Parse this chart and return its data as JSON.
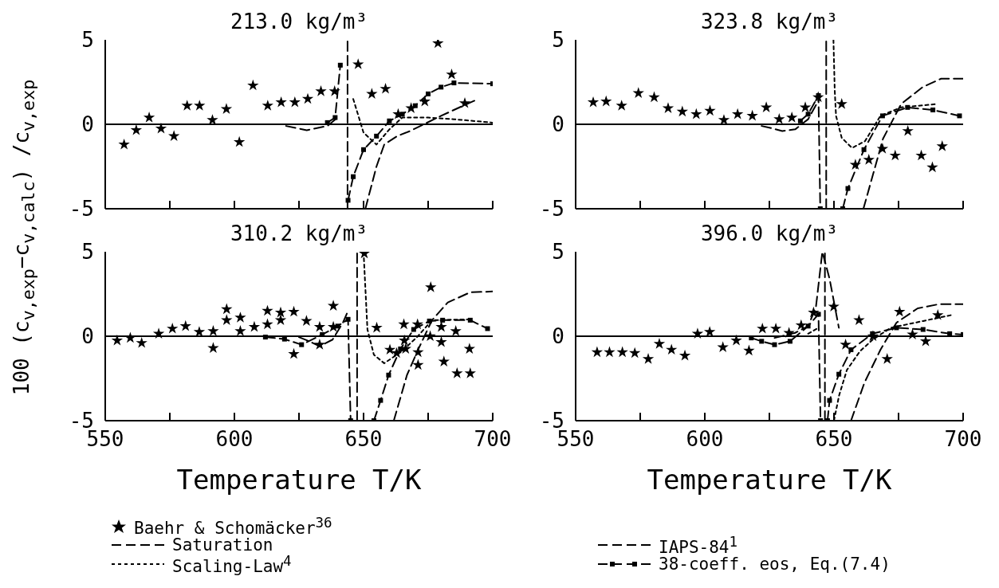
{
  "chart_data": [
    {
      "type": "line",
      "title": "213.0 kg/m³",
      "ylabel": "100 (c$_{v,exp}$−c$_{v,calc}$) /c$_{v,exp}$",
      "legend": "bottom",
      "tick_labels": "y",
      "xlim": [
        550,
        700
      ],
      "xticks": [
        550,
        {
          "value": 575,
          "label": null
        },
        600,
        {
          "value": 625,
          "label": null
        },
        650,
        {
          "value": 675,
          "label": null
        },
        700
      ],
      "ylim": [
        -5,
        5
      ],
      "yticks": [
        -5,
        0,
        5
      ],
      "ref_lines": [
        {
          "axis": "y",
          "value": 0,
          "label": null
        }
      ],
      "series": [
        {
          "name": "Baehr & Schomäcker$^{36}$",
          "type": "scatter",
          "marker": "star",
          "color": "#000000",
          "x": [
            557.3,
            562,
            567,
            571.6,
            576.6,
            581.7,
            586.5,
            591.5,
            596.9,
            601.9,
            607.2,
            612.9,
            618.1,
            623.4,
            628.4,
            633.5,
            638.8,
            647.9,
            653.2,
            658.5,
            663.4,
            668.4,
            673.7,
            678.8,
            684.1,
            689.2
          ],
          "values": [
            -1.2,
            -0.35,
            0.4,
            -0.25,
            -0.7,
            1.1,
            1.1,
            0.25,
            0.9,
            -1.05,
            2.3,
            1.1,
            1.3,
            1.3,
            1.5,
            1.95,
            1.95,
            3.55,
            1.8,
            2.1,
            0.6,
            0.95,
            1.35,
            4.8,
            2.95,
            1.25
          ]
        },
        {
          "name": "Saturation",
          "line_style": "dashed",
          "color": "#000000",
          "x": [
            643.8,
            643.8
          ],
          "values": [
            -5,
            5
          ]
        },
        {
          "name": "Scaling-Law$^{4}$",
          "line_style": "dotted",
          "color": "#000000",
          "x": [
            646,
            650,
            655,
            660,
            665,
            675,
            685,
            700
          ],
          "values": [
            1.5,
            -0.5,
            -1.2,
            -0.3,
            0.4,
            0.4,
            0.3,
            0.1
          ]
        },
        {
          "name": "IAPS-84$^{1}$",
          "line_style": "dashed",
          "color": "#000000",
          "x": [
            620,
            628,
            636,
            640,
            646,
            650.7,
            655,
            658,
            663,
            668,
            672,
            680,
            690,
            693
          ],
          "values": [
            -0.1,
            -0.35,
            -0.1,
            0.4,
            null,
            -5,
            -2.5,
            -1.2,
            -0.7,
            -0.4,
            -0.1,
            0.5,
            1.2,
            1.4
          ]
        },
        {
          "name": "38-coeff. eos, Eq.(7.4)",
          "line_style": "dashed",
          "marker": "square",
          "color": "#000000",
          "x": [
            636,
            639,
            641,
            642,
            644,
            646,
            650,
            655,
            660,
            665,
            670,
            675,
            680,
            685,
            700
          ],
          "values": [
            0.1,
            0.4,
            3.5,
            null,
            -4.5,
            -3.1,
            -1.5,
            -0.7,
            0.2,
            0.6,
            1.1,
            1.8,
            2.2,
            2.45,
            2.4
          ]
        }
      ]
    },
    {
      "type": "line",
      "title": "323.8 kg/m³",
      "tick_labels": "y",
      "xlim": [
        550,
        700
      ],
      "xticks": [
        550,
        {
          "value": 575,
          "label": null
        },
        600,
        {
          "value": 625,
          "label": null
        },
        650,
        {
          "value": 675,
          "label": null
        },
        700
      ],
      "ylim": [
        -5,
        5
      ],
      "yticks": [
        -5,
        0,
        5
      ],
      "ref_lines": [
        {
          "axis": "y",
          "value": 0,
          "label": null
        }
      ],
      "series": [
        {
          "type": "scatter",
          "marker": "star",
          "color": "#000000",
          "x": [
            556.8,
            561.8,
            567.8,
            574.3,
            580.4,
            585.8,
            591.3,
            596.7,
            602,
            607.4,
            612.7,
            618.4,
            623.8,
            628.8,
            633.7,
            638.9,
            643.9,
            653,
            658.3,
            663.5,
            668.8,
            673.7,
            678.6,
            683.8,
            688.1,
            691.9
          ],
          "values": [
            1.3,
            1.35,
            1.1,
            1.85,
            1.6,
            0.95,
            0.75,
            0.6,
            0.8,
            0.25,
            0.6,
            0.5,
            1,
            0.3,
            0.4,
            1,
            1.6,
            1.2,
            -2.4,
            -2.1,
            -1.45,
            -1.85,
            -0.4,
            -1.85,
            -2.55,
            -1.3
          ]
        },
        {
          "line_style": "dashed",
          "color": "#000000",
          "x": [
            647,
            647
          ],
          "values": [
            -5,
            5
          ]
        },
        {
          "line_style": "dotted",
          "color": "#000000",
          "x": [
            649.8,
            650.3,
            650.8,
            653,
            657,
            662,
            668,
            676,
            690
          ],
          "values": [
            5,
            2,
            0.5,
            -0.8,
            -1.4,
            -1,
            0.5,
            1,
            1.2
          ]
        },
        {
          "line_style": "dashed",
          "color": "#000000",
          "x": [
            622,
            625,
            630,
            635,
            640,
            644,
            650,
            661.4,
            669,
            676,
            684.3,
            691.5,
            700
          ],
          "values": [
            -0.1,
            -0.2,
            -0.4,
            -0.3,
            0.3,
            1.4,
            null,
            -5,
            -0.85,
            1.2,
            2.2,
            2.7,
            2.7
          ]
        },
        {
          "line_style": "dashed",
          "marker": "square",
          "color": "#000000",
          "x": [
            637,
            640,
            644,
            644.7,
            650,
            653.4,
            655.4,
            661.6,
            668.8,
            678.5,
            688.3,
            698.6
          ],
          "values": [
            0.2,
            0.6,
            1.7,
            -5,
            null,
            -5,
            -3.8,
            -1.5,
            0.5,
            1,
            0.85,
            0.5
          ]
        }
      ]
    },
    {
      "type": "line",
      "title": "310.2 kg/m³",
      "xlabel": "Temperature T/K",
      "xlim": [
        550,
        700
      ],
      "xticks": [
        550,
        {
          "value": 575,
          "label": null
        },
        600,
        {
          "value": 625,
          "label": null
        },
        650,
        {
          "value": 675,
          "label": null
        },
        700
      ],
      "ylim": [
        -5,
        5
      ],
      "yticks": [
        -5,
        0,
        5
      ],
      "ref_lines": [
        {
          "axis": "y",
          "value": 0,
          "label": null
        }
      ],
      "series": [
        {
          "type": "scatter",
          "marker": "star",
          "color": "#000000",
          "x": [
            554.6,
            559.7,
            564.1,
            570.7,
            576,
            581.1,
            586.4,
            591.8,
            591.8,
            597,
            597,
            602.3,
            602.3,
            607.7,
            612.8,
            612.8,
            617.9,
            617.9,
            623,
            623,
            627.9,
            633,
            633,
            638.3,
            638.3,
            650.3,
            655.1,
            660.2,
            662.8,
            665.6,
            665.8,
            666.3,
            670.9,
            671.1,
            671.1,
            676,
            675.8,
            680.1,
            680.1,
            681.1,
            685.7,
            686.2,
            691,
            691.3
          ],
          "values": [
            -0.25,
            -0.1,
            -0.4,
            0.15,
            0.45,
            0.6,
            0.25,
            0.3,
            -0.7,
            1.6,
            0.95,
            1.1,
            0.3,
            0.55,
            1.5,
            0.7,
            1.4,
            0.95,
            1.45,
            -1.05,
            0.9,
            0.55,
            -0.5,
            1.8,
            0.55,
            4.9,
            0.5,
            -0.8,
            -1,
            0.7,
            -0.25,
            -0.75,
            0.7,
            -0.95,
            -1.7,
            2.9,
            0,
            0.55,
            -0.35,
            -1.5,
            0.3,
            -2.2,
            -0.75,
            -2.2
          ]
        },
        {
          "line_style": "dashed",
          "color": "#000000",
          "x": [
            647.5,
            647.5
          ],
          "values": [
            -5,
            5
          ]
        },
        {
          "line_style": "dotted",
          "color": "#000000",
          "x": [
            650,
            651.5,
            654,
            658,
            664.3,
            670.4,
            676.5,
            691.3
          ],
          "values": [
            5,
            0.4,
            -1.1,
            -1.6,
            -0.95,
            -0.1,
            0.95,
            1
          ]
        },
        {
          "line_style": "dashed",
          "color": "#000000",
          "x": [
            625,
            629,
            633,
            638,
            642,
            644,
            650,
            661.7,
            666.8,
            671.4,
            676.5,
            682.6,
            691.3,
            700
          ],
          "values": [
            -0.05,
            -0.3,
            -0.6,
            -0.2,
            0.8,
            1.5,
            null,
            -5,
            -2.3,
            -0.7,
            0.95,
            2,
            2.6,
            2.65
          ]
        },
        {
          "line_style": "dashed",
          "marker": "square",
          "color": "#000000",
          "x": [
            612,
            619.4,
            626,
            634,
            640,
            644,
            645,
            650,
            654,
            656.6,
            659.7,
            664.3,
            669.4,
            675.5,
            680.6,
            691.3,
            698
          ],
          "values": [
            -0.05,
            -0.17,
            -0.5,
            0.1,
            0.6,
            1,
            -5,
            null,
            -5,
            -3.8,
            -2.3,
            -0.75,
            0.4,
            0.9,
            0.95,
            0.95,
            0.45
          ]
        }
      ]
    },
    {
      "type": "line",
      "title": "396.0 kg/m³",
      "xlabel": "Temperature T/K",
      "xlim": [
        550,
        700
      ],
      "xticks": [
        550,
        {
          "value": 575,
          "label": null
        },
        600,
        {
          "value": 625,
          "label": null
        },
        650,
        {
          "value": 675,
          "label": null
        },
        700
      ],
      "ylim": [
        -5,
        5
      ],
      "yticks": [
        -5,
        0,
        5
      ],
      "ref_lines": [
        {
          "axis": "y",
          "value": 0,
          "label": null
        }
      ],
      "series": [
        {
          "type": "scatter",
          "marker": "star",
          "color": "#000000",
          "x": [
            558.3,
            563.1,
            568.1,
            572.9,
            578.1,
            582.4,
            587.1,
            592.3,
            597.2,
            601.9,
            607,
            612.2,
            617.1,
            622.3,
            627.5,
            632.6,
            637.3,
            642.1,
            649.9,
            654.5,
            659.7,
            665.1,
            670.6,
            675.4,
            680.4,
            685.5,
            690.2
          ],
          "values": [
            -0.95,
            -0.95,
            -0.95,
            -1,
            -1.35,
            -0.45,
            -0.8,
            -1.15,
            0.15,
            0.25,
            -0.65,
            -0.25,
            -0.85,
            0.45,
            0.45,
            0.2,
            0.65,
            1.4,
            1.75,
            -0.5,
            0.95,
            0,
            -1.35,
            1.45,
            0.1,
            -0.3,
            1.25
          ]
        },
        {
          "line_style": "dashed",
          "color": "#000000",
          "x": [
            646.5,
            646.5
          ],
          "values": [
            -5,
            5
          ]
        },
        {
          "line_style": "dotted",
          "color": "#000000",
          "x": [
            640,
            644,
            646,
            650,
            652,
            655,
            660,
            665,
            672,
            684.5,
            695.4
          ],
          "values": [
            0.15,
            0.5,
            null,
            -5,
            -3.5,
            -2,
            -0.9,
            -0.2,
            0.5,
            0.9,
            1.25
          ]
        },
        {
          "line_style": "dashed",
          "color": "#000000",
          "x": [
            627,
            635,
            640,
            643,
            645.5,
            648.3,
            651.9,
            654,
            656.6,
            661.8,
            668,
            674.2,
            682.4,
            690.7,
            700
          ],
          "values": [
            -0.1,
            0.2,
            0.6,
            1.7,
            5,
            3.4,
            0.5,
            null,
            -5,
            -2.75,
            -0.8,
            0.8,
            1.65,
            1.9,
            1.9
          ]
        },
        {
          "line_style": "dashed",
          "marker": "square",
          "color": "#000000",
          "x": [
            618,
            622,
            627,
            633,
            640,
            644,
            644.8,
            646,
            647.5,
            648.3,
            651.9,
            656.6,
            664.9,
            674.2,
            684.5,
            694.8,
            700
          ],
          "values": [
            -0.1,
            -0.3,
            -0.5,
            -0.3,
            0.6,
            1.3,
            -5,
            null,
            -5,
            -3.8,
            -2.25,
            -0.8,
            0.15,
            0.5,
            0.4,
            0.15,
            0.1
          ]
        }
      ]
    }
  ]
}
